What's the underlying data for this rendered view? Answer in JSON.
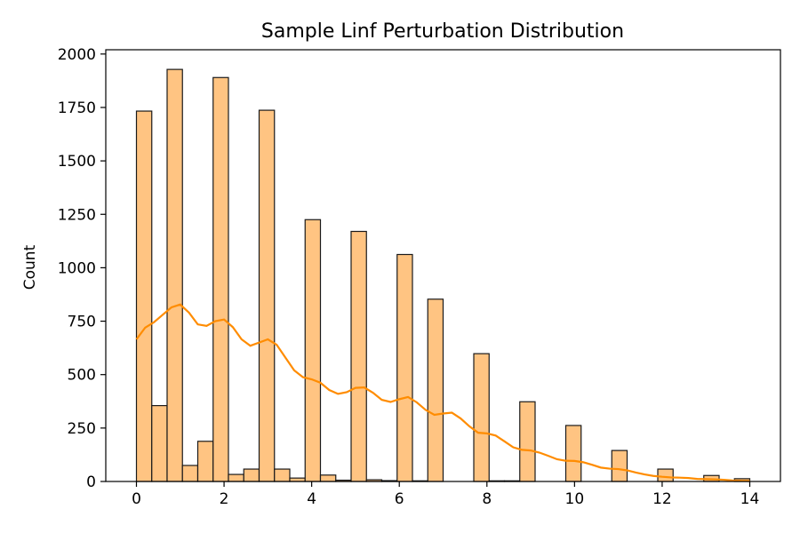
{
  "chart_data": {
    "type": "histogram",
    "title": "Sample Linf Perturbation Distribution",
    "xlabel": "",
    "ylabel": "Count",
    "xlim": [
      -0.7,
      14.7
    ],
    "ylim": [
      0,
      2020
    ],
    "xticks": [
      0,
      2,
      4,
      6,
      8,
      10,
      12,
      14
    ],
    "yticks": [
      0,
      250,
      500,
      750,
      1000,
      1250,
      1500,
      1750,
      2000
    ],
    "grid": false,
    "bin_width": 0.35,
    "bins": [
      {
        "x0": 0.0,
        "x1": 0.35,
        "count": 1733
      },
      {
        "x0": 0.35,
        "x1": 0.7,
        "count": 355
      },
      {
        "x0": 0.7,
        "x1": 1.05,
        "count": 1928
      },
      {
        "x0": 1.05,
        "x1": 1.4,
        "count": 75
      },
      {
        "x0": 1.4,
        "x1": 1.75,
        "count": 188
      },
      {
        "x0": 1.75,
        "x1": 2.1,
        "count": 1890
      },
      {
        "x0": 2.1,
        "x1": 2.45,
        "count": 33
      },
      {
        "x0": 2.45,
        "x1": 2.8,
        "count": 58
      },
      {
        "x0": 2.8,
        "x1": 3.15,
        "count": 1737
      },
      {
        "x0": 3.15,
        "x1": 3.5,
        "count": 58
      },
      {
        "x0": 3.5,
        "x1": 3.85,
        "count": 16
      },
      {
        "x0": 3.85,
        "x1": 4.2,
        "count": 1225
      },
      {
        "x0": 4.2,
        "x1": 4.55,
        "count": 30
      },
      {
        "x0": 4.55,
        "x1": 4.9,
        "count": 6
      },
      {
        "x0": 4.9,
        "x1": 5.25,
        "count": 1170
      },
      {
        "x0": 5.25,
        "x1": 5.6,
        "count": 8
      },
      {
        "x0": 5.6,
        "x1": 5.95,
        "count": 4
      },
      {
        "x0": 5.95,
        "x1": 6.3,
        "count": 1062
      },
      {
        "x0": 6.3,
        "x1": 6.65,
        "count": 3
      },
      {
        "x0": 6.65,
        "x1": 7.0,
        "count": 853
      },
      {
        "x0": 7.0,
        "x1": 7.35,
        "count": 0
      },
      {
        "x0": 7.35,
        "x1": 7.7,
        "count": 0
      },
      {
        "x0": 7.7,
        "x1": 8.05,
        "count": 598
      },
      {
        "x0": 8.05,
        "x1": 8.4,
        "count": 3
      },
      {
        "x0": 8.4,
        "x1": 8.75,
        "count": 3
      },
      {
        "x0": 8.75,
        "x1": 9.1,
        "count": 373
      },
      {
        "x0": 9.1,
        "x1": 9.45,
        "count": 0
      },
      {
        "x0": 9.45,
        "x1": 9.8,
        "count": 0
      },
      {
        "x0": 9.8,
        "x1": 10.15,
        "count": 262
      },
      {
        "x0": 10.15,
        "x1": 10.5,
        "count": 0
      },
      {
        "x0": 10.5,
        "x1": 10.85,
        "count": 0
      },
      {
        "x0": 10.85,
        "x1": 11.2,
        "count": 145
      },
      {
        "x0": 11.2,
        "x1": 11.55,
        "count": 0
      },
      {
        "x0": 11.55,
        "x1": 11.9,
        "count": 0
      },
      {
        "x0": 11.9,
        "x1": 12.25,
        "count": 58
      },
      {
        "x0": 12.25,
        "x1": 12.6,
        "count": 0
      },
      {
        "x0": 12.6,
        "x1": 12.95,
        "count": 0
      },
      {
        "x0": 12.95,
        "x1": 13.3,
        "count": 28
      },
      {
        "x0": 13.3,
        "x1": 13.65,
        "count": 0
      },
      {
        "x0": 13.65,
        "x1": 14.0,
        "count": 13
      }
    ],
    "kde": {
      "x": [
        0,
        0.2,
        0.4,
        0.6,
        0.8,
        1.0,
        1.2,
        1.4,
        1.6,
        1.8,
        2.0,
        2.2,
        2.4,
        2.6,
        2.8,
        3.0,
        3.2,
        3.4,
        3.6,
        3.8,
        4.0,
        4.2,
        4.4,
        4.6,
        4.8,
        5.0,
        5.2,
        5.4,
        5.6,
        5.8,
        6.0,
        6.2,
        6.4,
        6.6,
        6.8,
        7.0,
        7.2,
        7.4,
        7.6,
        7.8,
        8.0,
        8.2,
        8.4,
        8.6,
        8.8,
        9.0,
        9.2,
        9.4,
        9.6,
        9.8,
        10.0,
        10.2,
        10.4,
        10.6,
        10.8,
        11.0,
        11.2,
        11.4,
        11.6,
        11.8,
        12.0,
        12.2,
        12.4,
        12.6,
        12.8,
        13.0,
        13.2,
        13.4,
        13.6,
        13.8,
        14.0
      ],
      "y": [
        665,
        720,
        745,
        780,
        815,
        828,
        790,
        735,
        728,
        750,
        758,
        722,
        665,
        635,
        650,
        665,
        640,
        580,
        520,
        488,
        478,
        462,
        428,
        410,
        418,
        438,
        440,
        415,
        382,
        372,
        385,
        395,
        370,
        335,
        312,
        318,
        322,
        295,
        258,
        228,
        225,
        215,
        188,
        160,
        148,
        145,
        135,
        120,
        104,
        97,
        96,
        90,
        78,
        65,
        60,
        58,
        52,
        42,
        33,
        26,
        22,
        19,
        18,
        16,
        12,
        11,
        10,
        8,
        5,
        3,
        2
      ]
    }
  }
}
